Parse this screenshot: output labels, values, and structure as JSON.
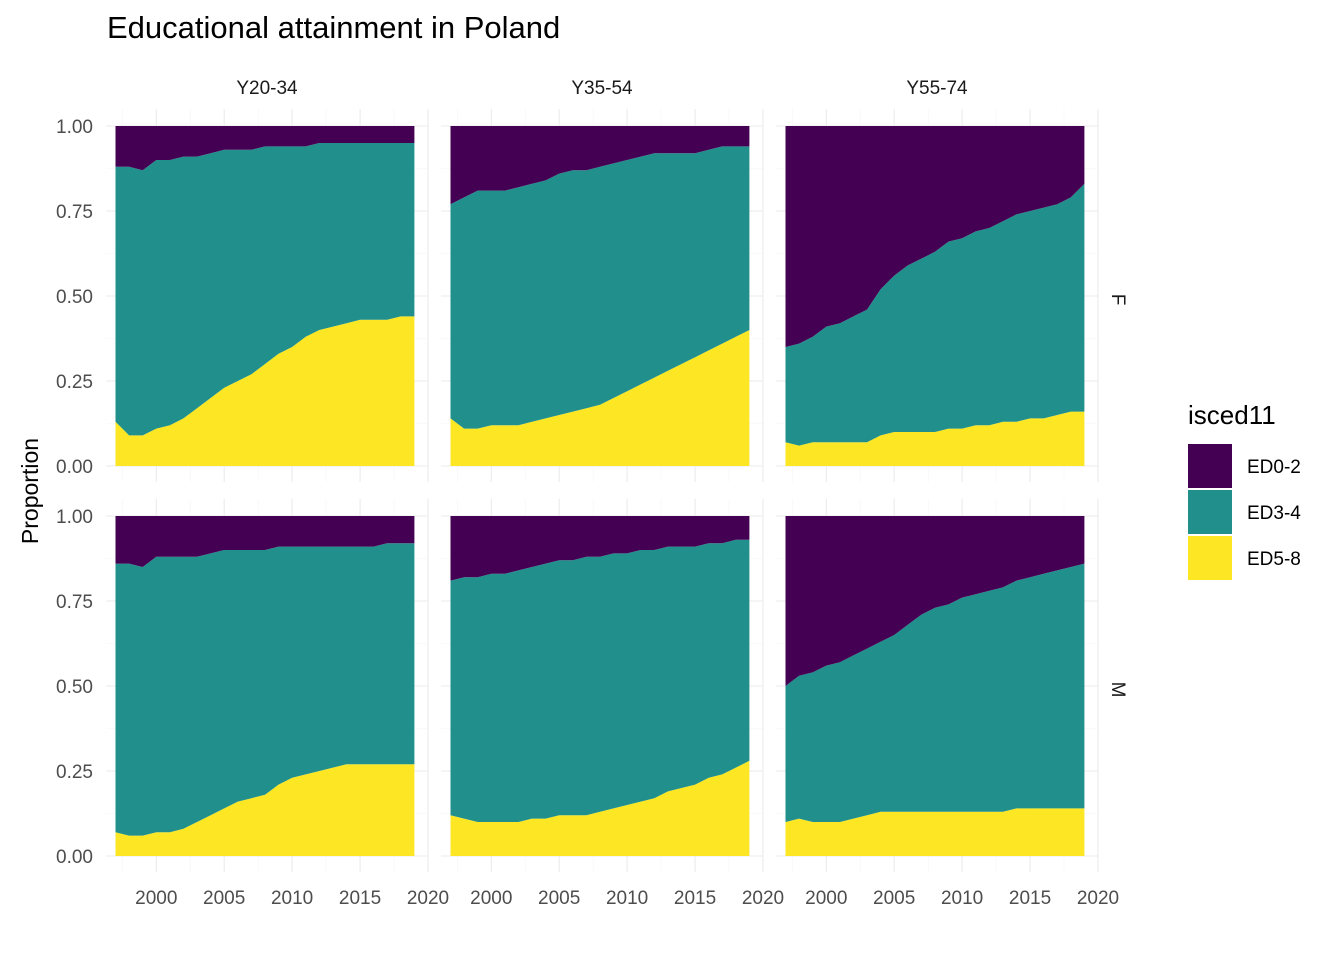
{
  "chart_data": {
    "type": "area",
    "stacked": "fill",
    "title": "Educational attainment in Poland",
    "ylabel": "Proportion",
    "xlabel": "",
    "ylim": [
      0,
      1
    ],
    "xlim": [
      1996.3,
      2020
    ],
    "xticks": [
      2000,
      2005,
      2010,
      2015,
      2020
    ],
    "yticks": [
      "0.00",
      "0.25",
      "0.50",
      "0.75",
      "1.00"
    ],
    "yticks_values": [
      0,
      0.25,
      0.5,
      0.75,
      1
    ],
    "grid": true,
    "legend": {
      "title": "isced11",
      "position": "right",
      "entries": [
        {
          "name": "ED0-2",
          "color": "#440154"
        },
        {
          "name": "ED3-4",
          "color": "#21908C"
        },
        {
          "name": "ED5-8",
          "color": "#FDE725"
        }
      ]
    },
    "col_facets": [
      "Y20-34",
      "Y35-54",
      "Y55-74"
    ],
    "row_facets": [
      "F",
      "M"
    ],
    "x": [
      1997,
      1998,
      1999,
      2000,
      2001,
      2002,
      2003,
      2004,
      2005,
      2006,
      2007,
      2008,
      2009,
      2010,
      2011,
      2012,
      2013,
      2014,
      2015,
      2016,
      2017,
      2018,
      2019
    ],
    "panels": [
      {
        "col": "Y20-34",
        "row": "F",
        "series": [
          {
            "name": "ED5-8",
            "values": [
              0.13,
              0.09,
              0.09,
              0.11,
              0.12,
              0.14,
              0.17,
              0.2,
              0.23,
              0.25,
              0.27,
              0.3,
              0.33,
              0.35,
              0.38,
              0.4,
              0.41,
              0.42,
              0.43,
              0.43,
              0.43,
              0.44,
              0.44
            ]
          },
          {
            "name": "ED3-4",
            "values": [
              0.75,
              0.79,
              0.78,
              0.79,
              0.78,
              0.77,
              0.74,
              0.72,
              0.7,
              0.68,
              0.66,
              0.64,
              0.61,
              0.59,
              0.56,
              0.55,
              0.54,
              0.53,
              0.52,
              0.52,
              0.52,
              0.51,
              0.51
            ]
          },
          {
            "name": "ED0-2",
            "values": [
              0.12,
              0.12,
              0.13,
              0.1,
              0.1,
              0.09,
              0.09,
              0.08,
              0.07,
              0.07,
              0.07,
              0.06,
              0.06,
              0.06,
              0.06,
              0.05,
              0.05,
              0.05,
              0.05,
              0.05,
              0.05,
              0.05,
              0.05
            ]
          }
        ]
      },
      {
        "col": "Y35-54",
        "row": "F",
        "series": [
          {
            "name": "ED5-8",
            "values": [
              0.14,
              0.11,
              0.11,
              0.12,
              0.12,
              0.12,
              0.13,
              0.14,
              0.15,
              0.16,
              0.17,
              0.18,
              0.2,
              0.22,
              0.24,
              0.26,
              0.28,
              0.3,
              0.32,
              0.34,
              0.36,
              0.38,
              0.4
            ]
          },
          {
            "name": "ED3-4",
            "values": [
              0.63,
              0.68,
              0.7,
              0.69,
              0.69,
              0.7,
              0.7,
              0.7,
              0.71,
              0.71,
              0.7,
              0.7,
              0.69,
              0.68,
              0.67,
              0.66,
              0.64,
              0.62,
              0.6,
              0.59,
              0.58,
              0.56,
              0.54
            ]
          },
          {
            "name": "ED0-2",
            "values": [
              0.23,
              0.21,
              0.19,
              0.19,
              0.19,
              0.18,
              0.17,
              0.16,
              0.14,
              0.13,
              0.13,
              0.12,
              0.11,
              0.1,
              0.09,
              0.08,
              0.08,
              0.08,
              0.08,
              0.07,
              0.06,
              0.06,
              0.06
            ]
          }
        ]
      },
      {
        "col": "Y55-74",
        "row": "F",
        "series": [
          {
            "name": "ED5-8",
            "values": [
              0.07,
              0.06,
              0.07,
              0.07,
              0.07,
              0.07,
              0.07,
              0.09,
              0.1,
              0.1,
              0.1,
              0.1,
              0.11,
              0.11,
              0.12,
              0.12,
              0.13,
              0.13,
              0.14,
              0.14,
              0.15,
              0.16,
              0.16
            ]
          },
          {
            "name": "ED3-4",
            "values": [
              0.28,
              0.3,
              0.31,
              0.34,
              0.35,
              0.37,
              0.39,
              0.43,
              0.46,
              0.49,
              0.51,
              0.53,
              0.55,
              0.56,
              0.57,
              0.58,
              0.59,
              0.61,
              0.61,
              0.62,
              0.62,
              0.63,
              0.67
            ]
          },
          {
            "name": "ED0-2",
            "values": [
              0.65,
              0.64,
              0.62,
              0.59,
              0.58,
              0.56,
              0.54,
              0.48,
              0.44,
              0.41,
              0.39,
              0.37,
              0.34,
              0.33,
              0.31,
              0.3,
              0.28,
              0.26,
              0.25,
              0.24,
              0.23,
              0.21,
              0.17
            ]
          }
        ]
      },
      {
        "col": "Y20-34",
        "row": "M",
        "series": [
          {
            "name": "ED5-8",
            "values": [
              0.07,
              0.06,
              0.06,
              0.07,
              0.07,
              0.08,
              0.1,
              0.12,
              0.14,
              0.16,
              0.17,
              0.18,
              0.21,
              0.23,
              0.24,
              0.25,
              0.26,
              0.27,
              0.27,
              0.27,
              0.27,
              0.27,
              0.27
            ]
          },
          {
            "name": "ED3-4",
            "values": [
              0.79,
              0.8,
              0.79,
              0.81,
              0.81,
              0.8,
              0.78,
              0.77,
              0.76,
              0.74,
              0.73,
              0.72,
              0.7,
              0.68,
              0.67,
              0.66,
              0.65,
              0.64,
              0.64,
              0.64,
              0.65,
              0.65,
              0.65
            ]
          },
          {
            "name": "ED0-2",
            "values": [
              0.14,
              0.14,
              0.15,
              0.12,
              0.12,
              0.12,
              0.12,
              0.11,
              0.1,
              0.1,
              0.1,
              0.1,
              0.09,
              0.09,
              0.09,
              0.09,
              0.09,
              0.09,
              0.09,
              0.09,
              0.08,
              0.08,
              0.08
            ]
          }
        ]
      },
      {
        "col": "Y35-54",
        "row": "M",
        "series": [
          {
            "name": "ED5-8",
            "values": [
              0.12,
              0.11,
              0.1,
              0.1,
              0.1,
              0.1,
              0.11,
              0.11,
              0.12,
              0.12,
              0.12,
              0.13,
              0.14,
              0.15,
              0.16,
              0.17,
              0.19,
              0.2,
              0.21,
              0.23,
              0.24,
              0.26,
              0.28
            ]
          },
          {
            "name": "ED3-4",
            "values": [
              0.69,
              0.71,
              0.72,
              0.73,
              0.73,
              0.74,
              0.74,
              0.75,
              0.75,
              0.75,
              0.76,
              0.75,
              0.75,
              0.74,
              0.74,
              0.73,
              0.72,
              0.71,
              0.7,
              0.69,
              0.68,
              0.67,
              0.65
            ]
          },
          {
            "name": "ED0-2",
            "values": [
              0.19,
              0.18,
              0.18,
              0.17,
              0.17,
              0.16,
              0.15,
              0.14,
              0.13,
              0.13,
              0.12,
              0.12,
              0.11,
              0.11,
              0.1,
              0.1,
              0.09,
              0.09,
              0.09,
              0.08,
              0.08,
              0.07,
              0.07
            ]
          }
        ]
      },
      {
        "col": "Y55-74",
        "row": "M",
        "series": [
          {
            "name": "ED5-8",
            "values": [
              0.1,
              0.11,
              0.1,
              0.1,
              0.1,
              0.11,
              0.12,
              0.13,
              0.13,
              0.13,
              0.13,
              0.13,
              0.13,
              0.13,
              0.13,
              0.13,
              0.13,
              0.14,
              0.14,
              0.14,
              0.14,
              0.14,
              0.14
            ]
          },
          {
            "name": "ED3-4",
            "values": [
              0.4,
              0.42,
              0.44,
              0.46,
              0.47,
              0.48,
              0.49,
              0.5,
              0.52,
              0.55,
              0.58,
              0.6,
              0.61,
              0.63,
              0.64,
              0.65,
              0.66,
              0.67,
              0.68,
              0.69,
              0.7,
              0.71,
              0.72
            ]
          },
          {
            "name": "ED0-2",
            "values": [
              0.5,
              0.47,
              0.46,
              0.44,
              0.43,
              0.41,
              0.39,
              0.37,
              0.35,
              0.32,
              0.29,
              0.27,
              0.26,
              0.24,
              0.23,
              0.22,
              0.21,
              0.19,
              0.18,
              0.17,
              0.16,
              0.15,
              0.14
            ]
          }
        ]
      }
    ]
  }
}
